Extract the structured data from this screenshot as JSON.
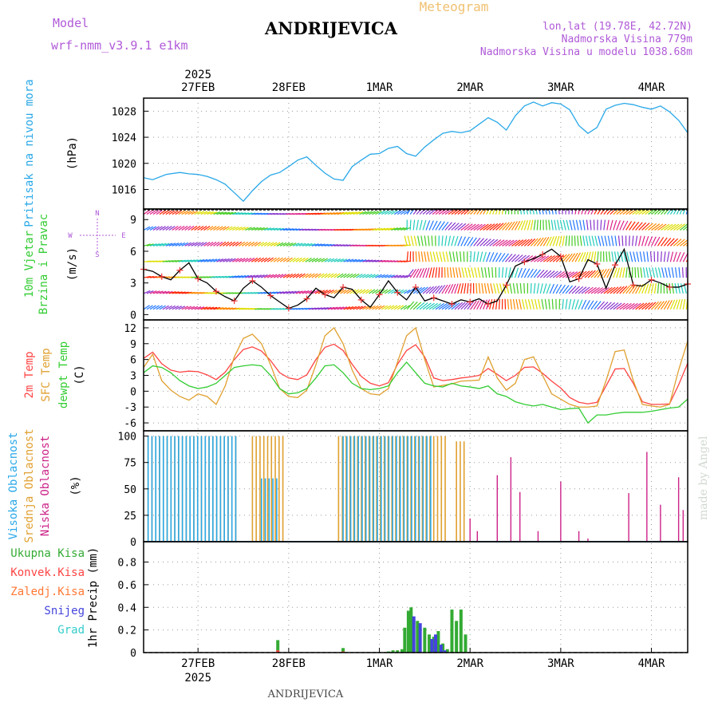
{
  "header": {
    "model_label": "Model",
    "model_name": "wrf-nmm_v3.9.1 e1km",
    "station": "ANDRIJEVICA",
    "product": "Meteogram",
    "lonlat": "lon,lat (19.78E, 42.72N)",
    "elevation": "Nadmorska Visina 779m",
    "model_elevation": "Nadmorska Visina u modelu 1038.68m",
    "footer": "ANDRIJEVICA",
    "watermark": "made by Angel"
  },
  "colors": {
    "pressure": "#29a8e8",
    "wind_label": "#33cc33",
    "temp2m": "#ff4444",
    "sfc": "#e0a030",
    "dewpt": "#33cc33",
    "high": "#29a8e8",
    "mid": "#e0a030",
    "low": "#cc2288",
    "total": "#33aa33",
    "convective": "#ff4444",
    "frozen": "#ff7733",
    "snow": "#4444dd",
    "hail": "#33cccc",
    "header_purple": "#b05ad8",
    "product": "#f0c070"
  },
  "chart_data": [
    {
      "type": "line",
      "id": "pressure",
      "ylabel": [
        "Pritisak na nivou mora",
        "(hPa)"
      ],
      "x_ticks": [
        "27FEB",
        "28FEB",
        "1MAR",
        "2MAR",
        "3MAR",
        "4MAR"
      ],
      "x_year": "2025",
      "ylim": [
        1013,
        1030
      ],
      "yticks": [
        1016,
        1020,
        1024,
        1028
      ],
      "xlim_days": [
        -0.6,
        5.4
      ],
      "grid": true,
      "series": [
        {
          "x": [
            -0.6,
            -0.5,
            -0.35,
            -0.2,
            -0.1,
            0.0,
            0.1,
            0.2,
            0.3,
            0.4,
            0.5,
            0.6,
            0.7,
            0.8,
            0.9,
            1.0,
            1.1,
            1.2,
            1.3,
            1.4,
            1.5,
            1.6,
            1.7,
            1.8,
            1.9,
            2.0,
            2.1,
            2.2,
            2.3,
            2.4,
            2.5,
            2.6,
            2.7,
            2.8,
            2.9,
            3.0,
            3.1,
            3.2,
            3.3,
            3.4,
            3.5,
            3.6,
            3.7,
            3.8,
            3.9,
            4.0,
            4.1,
            4.2,
            4.3,
            4.4,
            4.5,
            4.6,
            4.7,
            4.8,
            4.9,
            5.0,
            5.1,
            5.2,
            5.3,
            5.4
          ],
          "values": [
            1017.8,
            1017.5,
            1018.3,
            1018.6,
            1018.4,
            1018.3,
            1018.0,
            1017.5,
            1016.8,
            1015.5,
            1014.2,
            1015.8,
            1017.2,
            1018.2,
            1018.6,
            1019.5,
            1020.5,
            1021.0,
            1019.7,
            1018.5,
            1017.6,
            1017.4,
            1019.5,
            1020.5,
            1021.4,
            1021.5,
            1022.3,
            1022.6,
            1021.5,
            1021.1,
            1022.5,
            1023.6,
            1024.6,
            1024.9,
            1024.7,
            1025.0,
            1026.0,
            1027.0,
            1026.3,
            1025.1,
            1027.3,
            1028.8,
            1029.4,
            1028.8,
            1029.3,
            1029.1,
            1028.2,
            1025.8,
            1024.6,
            1025.5,
            1028.3,
            1028.9,
            1029.2,
            1029.0,
            1028.6,
            1028.3,
            1028.8,
            1027.9,
            1026.6,
            1024.7
          ]
        }
      ]
    },
    {
      "type": "line",
      "id": "wind",
      "ylabel": [
        "10m Vjetar",
        "Brzina i Pravac",
        "(m/s)"
      ],
      "compass": {
        "n": "N",
        "s": "S",
        "e": "E",
        "w": "W"
      },
      "ylim": [
        -0.5,
        10
      ],
      "yticks": [
        0,
        3,
        6,
        9
      ],
      "barb_rows": [
        0.5,
        2.0,
        3.5,
        5.0,
        6.5,
        8.0,
        9.5
      ],
      "series": [
        {
          "name": "speed",
          "x": [
            -0.6,
            -0.5,
            -0.4,
            -0.3,
            -0.2,
            -0.1,
            0.0,
            0.1,
            0.2,
            0.3,
            0.4,
            0.5,
            0.6,
            0.7,
            0.8,
            0.9,
            1.0,
            1.1,
            1.2,
            1.3,
            1.4,
            1.5,
            1.6,
            1.7,
            1.8,
            1.9,
            2.0,
            2.1,
            2.2,
            2.3,
            2.4,
            2.5,
            2.6,
            2.7,
            2.8,
            2.9,
            3.0,
            3.1,
            3.2,
            3.3,
            3.4,
            3.5,
            3.6,
            3.7,
            3.8,
            3.9,
            4.0,
            4.1,
            4.2,
            4.3,
            4.4,
            4.5,
            4.6,
            4.7,
            4.8,
            4.9,
            5.0,
            5.1,
            5.2,
            5.3,
            5.4
          ],
          "values": [
            4.3,
            4.1,
            3.6,
            3.3,
            4.2,
            4.9,
            3.4,
            3.0,
            2.2,
            1.7,
            1.3,
            2.5,
            3.2,
            2.6,
            1.8,
            1.2,
            0.6,
            0.9,
            1.5,
            2.5,
            1.9,
            1.6,
            2.6,
            2.4,
            1.4,
            0.7,
            1.9,
            3.2,
            2.1,
            1.4,
            2.6,
            1.3,
            1.6,
            1.3,
            1.0,
            1.4,
            1.2,
            1.5,
            1.0,
            1.3,
            2.8,
            4.6,
            5.0,
            5.3,
            5.7,
            6.2,
            5.5,
            3.1,
            3.4,
            5.2,
            4.8,
            2.5,
            4.7,
            6.2,
            2.8,
            2.7,
            3.3,
            3.0,
            2.6,
            2.6,
            2.9
          ]
        }
      ]
    },
    {
      "type": "line",
      "id": "temperature",
      "ylabel": [
        "2m Temp",
        "SFC Temp",
        "dewpt Temp",
        "(C)"
      ],
      "ylim": [
        -7.5,
        13.5
      ],
      "yticks": [
        -6,
        -3,
        0,
        3,
        6,
        9,
        12
      ],
      "series": [
        {
          "name": "2m Temp",
          "x": [
            -0.6,
            -0.5,
            -0.4,
            -0.3,
            -0.2,
            -0.1,
            0.0,
            0.1,
            0.2,
            0.3,
            0.4,
            0.5,
            0.6,
            0.7,
            0.8,
            0.9,
            1.0,
            1.1,
            1.2,
            1.3,
            1.4,
            1.5,
            1.6,
            1.7,
            1.8,
            1.9,
            2.0,
            2.1,
            2.2,
            2.3,
            2.4,
            2.5,
            2.6,
            2.7,
            2.8,
            2.9,
            3.0,
            3.1,
            3.2,
            3.3,
            3.4,
            3.5,
            3.6,
            3.7,
            3.8,
            3.9,
            4.0,
            4.1,
            4.2,
            4.3,
            4.4,
            4.5,
            4.6,
            4.7,
            4.8,
            4.9,
            5.0,
            5.1,
            5.2,
            5.3,
            5.4
          ],
          "values": [
            6.2,
            7.4,
            5.2,
            4.0,
            3.6,
            3.8,
            3.7,
            3.1,
            2.2,
            3.6,
            6.0,
            7.9,
            8.4,
            7.6,
            5.8,
            3.5,
            2.5,
            2.2,
            3.1,
            6.0,
            8.3,
            8.9,
            7.7,
            5.1,
            2.8,
            1.5,
            1.0,
            1.6,
            5.1,
            7.7,
            8.8,
            6.5,
            2.5,
            2.0,
            2.2,
            2.5,
            2.7,
            3.0,
            4.3,
            3.2,
            2.0,
            3.0,
            4.5,
            4.6,
            3.4,
            1.9,
            0.6,
            -1.2,
            -2.1,
            -2.4,
            -2.1,
            1.0,
            4.2,
            4.3,
            1.5,
            -2.0,
            -2.5,
            -2.5,
            -2.4,
            1.2,
            5.3
          ]
        },
        {
          "name": "SFC Temp",
          "x": [
            -0.6,
            -0.5,
            -0.4,
            -0.3,
            -0.2,
            -0.1,
            0.0,
            0.1,
            0.2,
            0.3,
            0.4,
            0.5,
            0.6,
            0.7,
            0.8,
            0.9,
            1.0,
            1.1,
            1.2,
            1.3,
            1.4,
            1.5,
            1.6,
            1.7,
            1.8,
            1.9,
            2.0,
            2.1,
            2.2,
            2.3,
            2.4,
            2.5,
            2.6,
            2.7,
            2.8,
            2.9,
            3.0,
            3.1,
            3.2,
            3.3,
            3.4,
            3.5,
            3.6,
            3.7,
            3.8,
            3.9,
            4.0,
            4.1,
            4.2,
            4.3,
            4.4,
            4.5,
            4.6,
            4.7,
            4.8,
            4.9,
            5.0,
            5.1,
            5.2,
            5.3,
            5.4
          ],
          "values": [
            4.5,
            7.0,
            2.0,
            0.2,
            -1.0,
            -1.7,
            -0.5,
            -1.0,
            -2.5,
            1.0,
            6.5,
            10.0,
            10.8,
            9.0,
            5.0,
            0.5,
            -1.0,
            -1.2,
            0.2,
            5.0,
            10.5,
            12.0,
            9.0,
            4.0,
            0.5,
            -0.5,
            -0.7,
            0.5,
            5.5,
            10.5,
            12.0,
            6.0,
            0.8,
            1.1,
            1.4,
            1.9,
            2.0,
            2.1,
            6.5,
            2.5,
            0.2,
            1.5,
            6.0,
            6.5,
            3.0,
            -0.5,
            -1.5,
            -2.5,
            -3.0,
            -3.0,
            -2.8,
            2.0,
            7.5,
            7.8,
            2.0,
            -2.5,
            -2.8,
            -3.0,
            -2.5,
            4.0,
            9.5
          ]
        },
        {
          "name": "dewpt Temp",
          "x": [
            -0.6,
            -0.5,
            -0.4,
            -0.3,
            -0.2,
            -0.1,
            0.0,
            0.1,
            0.2,
            0.3,
            0.4,
            0.5,
            0.6,
            0.7,
            0.8,
            0.9,
            1.0,
            1.1,
            1.2,
            1.3,
            1.4,
            1.5,
            1.6,
            1.7,
            1.8,
            1.9,
            2.0,
            2.1,
            2.2,
            2.3,
            2.4,
            2.5,
            2.6,
            2.7,
            2.8,
            2.9,
            3.0,
            3.1,
            3.2,
            3.3,
            3.4,
            3.5,
            3.6,
            3.7,
            3.8,
            3.9,
            4.0,
            4.1,
            4.2,
            4.3,
            4.4,
            4.5,
            4.6,
            4.7,
            4.8,
            4.9,
            5.0,
            5.1,
            5.2,
            5.3,
            5.4
          ],
          "values": [
            3.5,
            4.8,
            4.5,
            3.5,
            2.0,
            1.0,
            0.5,
            0.8,
            1.5,
            3.0,
            4.5,
            4.8,
            5.0,
            4.8,
            3.0,
            0.5,
            -0.5,
            -0.3,
            0.5,
            2.5,
            4.8,
            5.0,
            3.5,
            1.5,
            0.5,
            0.3,
            0.5,
            1.0,
            3.5,
            5.5,
            3.5,
            1.5,
            1.0,
            0.8,
            1.5,
            1.0,
            0.8,
            0.5,
            1.0,
            -0.5,
            -1.0,
            -2.0,
            -2.5,
            -2.8,
            -2.5,
            -3.0,
            -3.5,
            -3.3,
            -3.2,
            -6.0,
            -4.5,
            -4.5,
            -4.2,
            -4.0,
            -4.0,
            -4.0,
            -3.8,
            -3.5,
            -3.2,
            -3.0,
            -1.5
          ]
        }
      ]
    },
    {
      "type": "bar",
      "id": "clouds",
      "ylabel": [
        "Visoka Oblacnost",
        "Srednja Oblacnost",
        "Niska Oblacnost",
        "(%)"
      ],
      "ylim": [
        0,
        105
      ],
      "yticks": [
        0,
        25,
        50,
        75,
        100
      ],
      "series": [
        {
          "name": "Srednja Oblacnost",
          "ranges": [
            [
              -0.55,
              0.45,
              100
            ],
            [
              0.6,
              0.95,
              100
            ],
            [
              1.55,
              2.75,
              100
            ],
            [
              2.85,
              2.95,
              95
            ]
          ]
        },
        {
          "name": "Visoka Oblacnost",
          "ranges": [
            [
              -0.55,
              0.45,
              100
            ],
            [
              0.7,
              0.9,
              60
            ],
            [
              1.6,
              2.6,
              100
            ]
          ]
        },
        {
          "name": "Niska Oblacnost",
          "x": [
            3.0,
            3.08,
            3.3,
            3.45,
            3.55,
            3.75,
            4.0,
            4.2,
            4.3,
            4.75,
            4.95,
            5.1,
            5.3,
            5.35
          ],
          "values": [
            22,
            10,
            63,
            80,
            47,
            10,
            57,
            10,
            3,
            46,
            85,
            35,
            61,
            30
          ]
        }
      ]
    },
    {
      "type": "bar",
      "id": "precip",
      "ylabel": [
        "1hr Precip (mm)"
      ],
      "legend": [
        "Ukupna Kisa",
        "Konvek.Kisa",
        "Zaledj.Kisa",
        "Snijeg",
        "Grad"
      ],
      "ylim": [
        0,
        0.98
      ],
      "yticks": [
        0,
        0.2,
        0.4,
        0.6,
        0.8
      ],
      "series": [
        {
          "name": "Ukupna Kisa",
          "x": [
            0.88,
            1.6,
            2.1,
            2.15,
            2.2,
            2.25,
            2.28,
            2.32,
            2.35,
            2.42,
            2.5,
            2.55,
            2.6,
            2.65,
            2.7,
            2.75,
            2.8,
            2.85,
            2.9,
            2.95
          ],
          "values": [
            0.11,
            0.04,
            0.01,
            0.02,
            0.02,
            0.03,
            0.22,
            0.37,
            0.4,
            0.28,
            0.22,
            0.16,
            0.14,
            0.19,
            0.08,
            0.03,
            0.38,
            0.28,
            0.38,
            0.16
          ]
        },
        {
          "name": "Snijeg",
          "x": [
            2.38,
            2.45,
            2.58,
            2.62,
            2.68,
            2.72
          ],
          "values": [
            0.32,
            0.26,
            0.12,
            0.16,
            0.07,
            0.02
          ]
        },
        {
          "name": "Konvek.Kisa",
          "x": [
            0.88,
            1.6
          ],
          "values": [
            0.02,
            0.01
          ]
        }
      ]
    }
  ]
}
